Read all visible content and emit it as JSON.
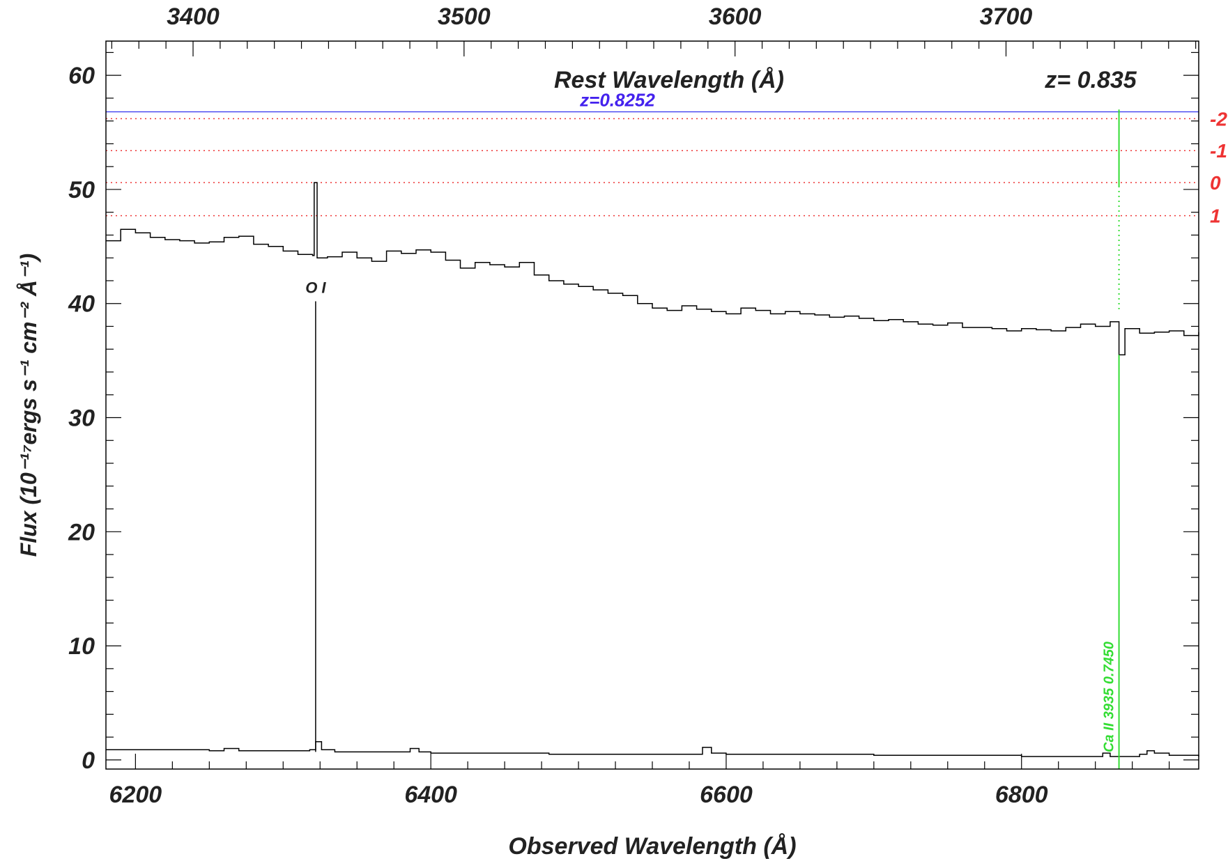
{
  "chart_data": {
    "type": "line",
    "title": "",
    "xlabel": "Observed Wavelength (Å)",
    "ylabel": "Flux (10⁻¹⁷ergs s⁻¹ cm⁻² Å⁻¹)",
    "x2label": "Rest Wavelength (Å)",
    "redshift_label": "z= 0.835",
    "xlim": [
      6180,
      6920
    ],
    "ylim": [
      -0.8,
      63
    ],
    "x_ticks": [
      6200,
      6400,
      6600,
      6800
    ],
    "y_ticks": [
      0,
      10,
      20,
      30,
      40,
      50,
      60
    ],
    "x2_ticks": [
      3400,
      3500,
      3600,
      3700
    ],
    "x2_per_x": 0.835,
    "grid": false,
    "colors": {
      "spectrum": "#000000",
      "error": "#000000",
      "system_line": "#2020ee",
      "system_label": "#4422ee",
      "ref_lines": "#ee3333",
      "ca_line": "#33dd33"
    },
    "system": {
      "label": "z=0.8252",
      "y": 56.8
    },
    "reference_levels": [
      {
        "label": "-2",
        "y": 56.2
      },
      {
        "label": "-1",
        "y": 53.4
      },
      {
        "label": "0",
        "y": 50.6
      },
      {
        "label": "1",
        "y": 47.7
      }
    ],
    "line_marks": [
      {
        "label": "O I",
        "x": 6322,
        "y_top": 40.2,
        "y_bottom": 0.7,
        "color": "#000000"
      },
      {
        "label": "Ca II 3935 0.7450",
        "x": 6866,
        "y_solid_top": 57.0,
        "y_solid_bottom": 50.3,
        "y_dot_bottom": 39.5,
        "y_low_top": 35.5,
        "color": "#33dd33"
      }
    ],
    "series": [
      {
        "name": "",
        "type": "step",
        "color": "#000000",
        "x": [
          6180,
          6190,
          6200,
          6210,
          6220,
          6230,
          6240,
          6250,
          6260,
          6270,
          6280,
          6290,
          6300,
          6310,
          6320,
          6321,
          6323,
          6330,
          6340,
          6350,
          6360,
          6370,
          6380,
          6390,
          6400,
          6410,
          6420,
          6430,
          6440,
          6450,
          6460,
          6470,
          6480,
          6490,
          6500,
          6510,
          6520,
          6530,
          6540,
          6550,
          6560,
          6570,
          6580,
          6590,
          6600,
          6610,
          6620,
          6630,
          6640,
          6650,
          6660,
          6670,
          6680,
          6690,
          6700,
          6710,
          6720,
          6730,
          6740,
          6750,
          6760,
          6770,
          6780,
          6790,
          6800,
          6810,
          6820,
          6830,
          6840,
          6850,
          6860,
          6866,
          6870,
          6880,
          6890,
          6900,
          6910,
          6920
        ],
        "values": [
          45.5,
          46.5,
          46.2,
          45.8,
          45.6,
          45.5,
          45.3,
          45.4,
          45.8,
          45.9,
          45.2,
          45.0,
          44.6,
          44.3,
          44.2,
          50.6,
          44.0,
          44.1,
          44.5,
          44.0,
          43.7,
          44.6,
          44.4,
          44.7,
          44.5,
          43.8,
          43.1,
          43.6,
          43.4,
          43.2,
          43.6,
          42.5,
          42.0,
          41.7,
          41.5,
          41.2,
          40.9,
          40.7,
          40.0,
          39.6,
          39.4,
          39.8,
          39.5,
          39.3,
          39.1,
          39.6,
          39.4,
          39.1,
          39.3,
          39.1,
          39.0,
          38.8,
          38.9,
          38.7,
          38.5,
          38.6,
          38.4,
          38.2,
          38.1,
          38.3,
          37.9,
          37.9,
          37.8,
          37.6,
          37.8,
          37.7,
          37.6,
          37.9,
          38.2,
          38.0,
          38.4,
          35.5,
          37.8,
          37.4,
          37.5,
          37.6,
          37.2,
          37.5
        ]
      },
      {
        "name": "",
        "type": "step",
        "color": "#000000",
        "x": [
          6180,
          6250,
          6260,
          6270,
          6310,
          6318,
          6322,
          6326,
          6335,
          6380,
          6386,
          6392,
          6400,
          6480,
          6580,
          6584,
          6590,
          6600,
          6700,
          6800,
          6850,
          6855,
          6860,
          6870,
          6875,
          6880,
          6885,
          6890,
          6900,
          6920
        ],
        "values": [
          0.9,
          0.8,
          1.0,
          0.8,
          0.8,
          0.9,
          1.6,
          0.9,
          0.7,
          0.7,
          1.0,
          0.7,
          0.6,
          0.5,
          0.5,
          1.1,
          0.6,
          0.5,
          0.4,
          0.3,
          0.3,
          0.6,
          0.3,
          0.3,
          0.3,
          0.5,
          0.8,
          0.6,
          0.4,
          0.3
        ]
      }
    ]
  }
}
